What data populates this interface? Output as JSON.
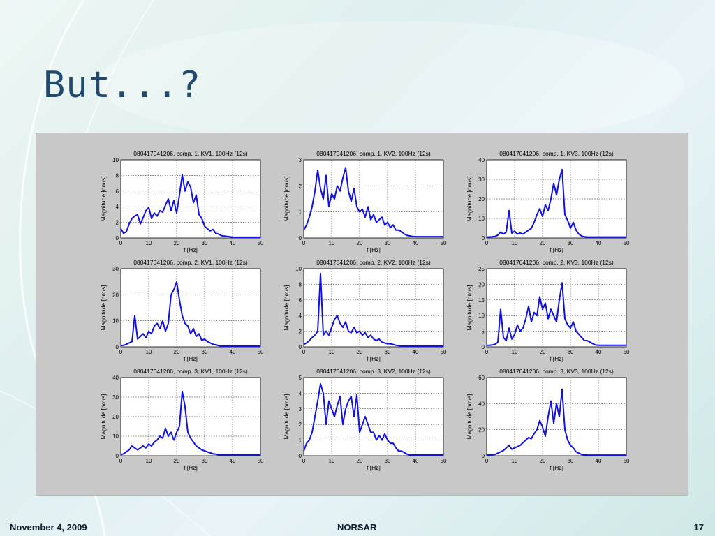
{
  "slide": {
    "title": "But...?",
    "footer_date": "November 4, 2009",
    "footer_org": "NORSAR",
    "page_number": "17"
  },
  "colors": {
    "line": "#1010e8",
    "panel": "#c8c8c8",
    "title": "#1f4a6b"
  },
  "chart_data": [
    {
      "type": "line",
      "title": "080417041206, comp. 1, KV1, 100Hz (12s)",
      "xlabel": "f [Hz]",
      "ylabel": "Magnitude [nm/s]",
      "xlim": [
        0,
        50
      ],
      "ylim": [
        0,
        10
      ],
      "xticks": [
        0,
        10,
        20,
        30,
        40,
        50
      ],
      "yticks": [
        0,
        2,
        4,
        6,
        8,
        10
      ],
      "grid": true,
      "x": [
        0,
        1,
        2,
        3,
        4,
        5,
        6,
        7,
        8,
        9,
        10,
        11,
        12,
        13,
        14,
        15,
        16,
        17,
        18,
        19,
        20,
        21,
        22,
        23,
        24,
        25,
        26,
        27,
        28,
        29,
        30,
        31,
        32,
        33,
        34,
        35,
        36,
        37,
        38,
        39,
        40,
        41,
        42,
        43,
        44,
        45,
        46,
        47,
        48,
        49,
        50
      ],
      "y": [
        1.2,
        0.6,
        0.8,
        1.8,
        2.5,
        2.8,
        3.0,
        1.8,
        2.6,
        3.5,
        3.9,
        2.5,
        3.2,
        2.8,
        3.5,
        3.3,
        4.2,
        5.0,
        3.5,
        4.8,
        3.2,
        5.5,
        8.1,
        6.0,
        7.2,
        6.5,
        4.5,
        5.5,
        3.0,
        2.5,
        1.5,
        1.2,
        0.9,
        1.1,
        0.6,
        0.5,
        0.3,
        0.25,
        0.2,
        0.15,
        0.1,
        0.1,
        0.1,
        0.1,
        0.1,
        0.1,
        0.1,
        0.1,
        0.1,
        0.1,
        0.1
      ]
    },
    {
      "type": "line",
      "title": "080417041206, comp. 1, KV2, 100Hz (12s)",
      "xlabel": "f [Hz]",
      "ylabel": "Magnitude [nm/s]",
      "xlim": [
        0,
        50
      ],
      "ylim": [
        0,
        3
      ],
      "xticks": [
        0,
        10,
        20,
        30,
        40,
        50
      ],
      "yticks": [
        0,
        1,
        2,
        3
      ],
      "grid": true,
      "x": [
        0,
        1,
        2,
        3,
        4,
        5,
        6,
        7,
        8,
        9,
        10,
        11,
        12,
        13,
        14,
        15,
        16,
        17,
        18,
        19,
        20,
        21,
        22,
        23,
        24,
        25,
        26,
        27,
        28,
        29,
        30,
        31,
        32,
        33,
        34,
        35,
        36,
        37,
        38,
        39,
        40,
        41,
        42,
        43,
        44,
        45,
        46,
        47,
        48,
        49,
        50
      ],
      "y": [
        0.3,
        0.5,
        0.8,
        1.2,
        1.8,
        2.6,
        1.9,
        1.5,
        2.4,
        1.2,
        1.7,
        1.5,
        2.0,
        1.8,
        2.3,
        2.7,
        1.8,
        1.4,
        1.9,
        1.2,
        1.0,
        1.1,
        0.8,
        1.2,
        0.7,
        0.9,
        0.6,
        0.7,
        0.8,
        0.5,
        0.6,
        0.4,
        0.5,
        0.3,
        0.3,
        0.25,
        0.15,
        0.1,
        0.08,
        0.06,
        0.05,
        0.05,
        0.05,
        0.05,
        0.05,
        0.05,
        0.05,
        0.05,
        0.05,
        0.05,
        0.05
      ]
    },
    {
      "type": "line",
      "title": "080417041206, comp. 1, KV3, 100Hz (12s)",
      "xlabel": "f [Hz]",
      "ylabel": "Magnitude [nm/s]",
      "xlim": [
        0,
        50
      ],
      "ylim": [
        0,
        40
      ],
      "xticks": [
        0,
        10,
        20,
        30,
        40,
        50
      ],
      "yticks": [
        0,
        10,
        20,
        30,
        40
      ],
      "grid": true,
      "x": [
        0,
        1,
        2,
        3,
        4,
        5,
        6,
        7,
        8,
        9,
        10,
        11,
        12,
        13,
        14,
        15,
        16,
        17,
        18,
        19,
        20,
        21,
        22,
        23,
        24,
        25,
        26,
        27,
        28,
        29,
        30,
        31,
        32,
        33,
        34,
        35,
        36,
        37,
        38,
        39,
        40,
        41,
        42,
        43,
        44,
        45,
        46,
        47,
        48,
        49,
        50
      ],
      "y": [
        0.5,
        0.5,
        0.6,
        0.8,
        1.5,
        3.0,
        2.0,
        3.0,
        14.0,
        2.5,
        3.5,
        2.0,
        2.5,
        2.0,
        3.0,
        4.0,
        5.0,
        8.0,
        12.0,
        15.0,
        11.0,
        17.0,
        14.0,
        20.0,
        28.0,
        22.0,
        30.0,
        35.0,
        12.0,
        9.0,
        5.0,
        8.0,
        4.0,
        2.0,
        1.0,
        0.6,
        0.5,
        0.5,
        0.5,
        0.5,
        0.5,
        0.5,
        0.5,
        0.5,
        0.5,
        0.5,
        0.5,
        0.5,
        0.5,
        0.5,
        0.5
      ]
    },
    {
      "type": "line",
      "title": "080417041206, comp. 2, KV1, 100Hz (12s)",
      "xlabel": "f [Hz]",
      "ylabel": "Magnitude [nm/s]",
      "xlim": [
        0,
        50
      ],
      "ylim": [
        0,
        30
      ],
      "xticks": [
        0,
        10,
        20,
        30,
        40,
        50
      ],
      "yticks": [
        0,
        10,
        20,
        30
      ],
      "grid": true,
      "x": [
        0,
        1,
        2,
        3,
        4,
        5,
        6,
        7,
        8,
        9,
        10,
        11,
        12,
        13,
        14,
        15,
        16,
        17,
        18,
        19,
        20,
        21,
        22,
        23,
        24,
        25,
        26,
        27,
        28,
        29,
        30,
        31,
        32,
        33,
        34,
        35,
        36,
        37,
        38,
        39,
        40,
        41,
        42,
        43,
        44,
        45,
        46,
        47,
        48,
        49,
        50
      ],
      "y": [
        0.5,
        0.6,
        1.0,
        1.5,
        2.0,
        12.0,
        3.0,
        4.0,
        5.0,
        3.5,
        6.0,
        5.0,
        8.0,
        9.0,
        7.0,
        10.0,
        6.0,
        9.0,
        20.0,
        22.0,
        25.0,
        18.0,
        12.0,
        9.0,
        8.0,
        5.0,
        7.0,
        4.0,
        5.0,
        2.5,
        3.0,
        2.0,
        1.5,
        1.0,
        0.8,
        0.5,
        0.3,
        0.3,
        0.3,
        0.3,
        0.3,
        0.3,
        0.3,
        0.3,
        0.3,
        0.3,
        0.3,
        0.3,
        0.3,
        0.3,
        0.3
      ]
    },
    {
      "type": "line",
      "title": "080417041206, comp. 2, KV2, 100Hz (12s)",
      "xlabel": "f [Hz]",
      "ylabel": "Magnitude [nm/s]",
      "xlim": [
        0,
        50
      ],
      "ylim": [
        0,
        10
      ],
      "xticks": [
        0,
        10,
        20,
        30,
        40,
        50
      ],
      "yticks": [
        0,
        2,
        4,
        6,
        8,
        10
      ],
      "grid": true,
      "x": [
        0,
        1,
        2,
        3,
        4,
        5,
        6,
        7,
        8,
        9,
        10,
        11,
        12,
        13,
        14,
        15,
        16,
        17,
        18,
        19,
        20,
        21,
        22,
        23,
        24,
        25,
        26,
        27,
        28,
        29,
        30,
        31,
        32,
        33,
        34,
        35,
        36,
        37,
        38,
        39,
        40,
        41,
        42,
        43,
        44,
        45,
        46,
        47,
        48,
        49,
        50
      ],
      "y": [
        0.3,
        0.5,
        0.8,
        1.2,
        1.5,
        2.0,
        9.4,
        1.5,
        2.0,
        1.5,
        2.5,
        3.5,
        4.0,
        3.0,
        2.5,
        3.2,
        2.0,
        1.8,
        2.5,
        1.8,
        2.0,
        1.5,
        1.8,
        1.2,
        1.5,
        1.0,
        0.8,
        1.0,
        0.6,
        0.5,
        0.4,
        0.4,
        0.3,
        0.2,
        0.15,
        0.1,
        0.1,
        0.1,
        0.1,
        0.1,
        0.1,
        0.1,
        0.1,
        0.1,
        0.1,
        0.1,
        0.1,
        0.1,
        0.1,
        0.1,
        0.1
      ]
    },
    {
      "type": "line",
      "title": "080417041206, comp. 2, KV3, 100Hz (12s)",
      "xlabel": "f [Hz]",
      "ylabel": "Magnitude [nm/s]",
      "xlim": [
        0,
        50
      ],
      "ylim": [
        0,
        25
      ],
      "xticks": [
        0,
        10,
        20,
        30,
        40,
        50
      ],
      "yticks": [
        0,
        5,
        10,
        15,
        20,
        25
      ],
      "grid": true,
      "x": [
        0,
        1,
        2,
        3,
        4,
        5,
        6,
        7,
        8,
        9,
        10,
        11,
        12,
        13,
        14,
        15,
        16,
        17,
        18,
        19,
        20,
        21,
        22,
        23,
        24,
        25,
        26,
        27,
        28,
        29,
        30,
        31,
        32,
        33,
        34,
        35,
        36,
        37,
        38,
        39,
        40,
        41,
        42,
        43,
        44,
        45,
        46,
        47,
        48,
        49,
        50
      ],
      "y": [
        0.5,
        0.5,
        0.6,
        0.8,
        1.5,
        12.0,
        3.0,
        2.0,
        6.0,
        2.5,
        4.0,
        7.0,
        5.0,
        6.0,
        9.0,
        13.0,
        8.0,
        11.0,
        10.0,
        16.0,
        12.0,
        14.0,
        9.0,
        12.0,
        10.0,
        8.0,
        15.0,
        20.5,
        9.0,
        7.0,
        6.0,
        8.0,
        5.0,
        4.0,
        3.0,
        2.0,
        2.0,
        1.5,
        1.0,
        0.6,
        0.5,
        0.5,
        0.5,
        0.5,
        0.5,
        0.5,
        0.5,
        0.5,
        0.5,
        0.5,
        0.5
      ]
    },
    {
      "type": "line",
      "title": "080417041206, comp. 3, KV1, 100Hz (12s)",
      "xlabel": "f [Hz]",
      "ylabel": "Magnitude [nm/s]",
      "xlim": [
        0,
        50
      ],
      "ylim": [
        0,
        40
      ],
      "xticks": [
        0,
        10,
        20,
        30,
        40,
        50
      ],
      "yticks": [
        0,
        10,
        20,
        30,
        40
      ],
      "grid": true,
      "x": [
        0,
        1,
        2,
        3,
        4,
        5,
        6,
        7,
        8,
        9,
        10,
        11,
        12,
        13,
        14,
        15,
        16,
        17,
        18,
        19,
        20,
        21,
        22,
        23,
        24,
        25,
        26,
        27,
        28,
        29,
        30,
        31,
        32,
        33,
        34,
        35,
        36,
        37,
        38,
        39,
        40,
        41,
        42,
        43,
        44,
        45,
        46,
        47,
        48,
        49,
        50
      ],
      "y": [
        0.5,
        1.0,
        2.0,
        3.0,
        5.0,
        4.0,
        3.0,
        4.0,
        5.0,
        4.0,
        6.0,
        5.0,
        7.0,
        8.0,
        10.0,
        9.0,
        14.0,
        10.0,
        12.0,
        8.0,
        12.0,
        15.0,
        33.0,
        25.0,
        12.0,
        9.0,
        7.0,
        5.0,
        4.0,
        3.0,
        2.5,
        2.0,
        1.5,
        1.0,
        0.8,
        0.5,
        0.5,
        0.5,
        0.5,
        0.5,
        0.5,
        0.5,
        0.5,
        0.5,
        0.5,
        0.5,
        0.5,
        0.5,
        0.5,
        0.5,
        0.5
      ]
    },
    {
      "type": "line",
      "title": "080417041206, comp. 3, KV2, 100Hz (12s)",
      "xlabel": "f [Hz]",
      "ylabel": "Magnitude [nm/s]",
      "xlim": [
        0,
        50
      ],
      "ylim": [
        0,
        5
      ],
      "xticks": [
        0,
        10,
        20,
        30,
        40,
        50
      ],
      "yticks": [
        0,
        1,
        2,
        3,
        4,
        5
      ],
      "grid": true,
      "x": [
        0,
        1,
        2,
        3,
        4,
        5,
        6,
        7,
        8,
        9,
        10,
        11,
        12,
        13,
        14,
        15,
        16,
        17,
        18,
        19,
        20,
        21,
        22,
        23,
        24,
        25,
        26,
        27,
        28,
        29,
        30,
        31,
        32,
        33,
        34,
        35,
        36,
        37,
        38,
        39,
        40,
        41,
        42,
        43,
        44,
        45,
        46,
        47,
        48,
        49,
        50
      ],
      "y": [
        0.3,
        0.8,
        1.0,
        1.5,
        2.5,
        3.5,
        4.6,
        4.0,
        2.0,
        3.5,
        3.0,
        2.5,
        3.2,
        3.8,
        2.0,
        3.0,
        3.5,
        3.8,
        2.5,
        3.9,
        1.5,
        2.0,
        2.5,
        2.0,
        1.5,
        1.5,
        1.0,
        1.3,
        1.0,
        1.4,
        1.0,
        0.8,
        0.8,
        0.5,
        0.3,
        0.3,
        0.2,
        0.1,
        0.05,
        0.05,
        0.05,
        0.05,
        0.05,
        0.05,
        0.05,
        0.05,
        0.05,
        0.05,
        0.05,
        0.05,
        0.05
      ]
    },
    {
      "type": "line",
      "title": "080417041206, comp. 3, KV3, 100Hz (12s)",
      "xlabel": "f [Hz]",
      "ylabel": "Magnitude [nm/s]",
      "xlim": [
        0,
        50
      ],
      "ylim": [
        0,
        60
      ],
      "xticks": [
        0,
        10,
        20,
        30,
        40,
        50
      ],
      "yticks": [
        0,
        20,
        40,
        60
      ],
      "grid": true,
      "x": [
        0,
        1,
        2,
        3,
        4,
        5,
        6,
        7,
        8,
        9,
        10,
        11,
        12,
        13,
        14,
        15,
        16,
        17,
        18,
        19,
        20,
        21,
        22,
        23,
        24,
        25,
        26,
        27,
        28,
        29,
        30,
        31,
        32,
        33,
        34,
        35,
        36,
        37,
        38,
        39,
        40,
        41,
        42,
        43,
        44,
        45,
        46,
        47,
        48,
        49,
        50
      ],
      "y": [
        0.5,
        0.5,
        0.8,
        1.0,
        2.0,
        3.0,
        4.0,
        6.0,
        8.0,
        5.0,
        6.0,
        7.0,
        8.0,
        10.0,
        12.0,
        14.0,
        13.0,
        17.0,
        20.0,
        27.0,
        22.0,
        15.0,
        30.0,
        42.0,
        25.0,
        40.0,
        30.0,
        51.0,
        20.0,
        12.0,
        8.0,
        6.0,
        3.0,
        2.0,
        1.0,
        0.6,
        0.5,
        0.5,
        0.5,
        0.5,
        0.5,
        0.5,
        0.5,
        0.5,
        0.5,
        0.5,
        0.5,
        0.5,
        0.5,
        0.5,
        0.5
      ]
    }
  ]
}
